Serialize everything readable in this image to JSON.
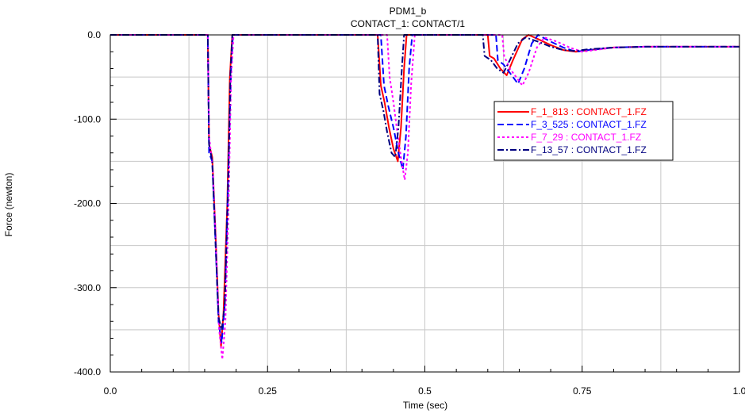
{
  "chart_data": {
    "type": "line",
    "title": "PDM1_b",
    "subtitle": "CONTACT_1: CONTACT/1",
    "xlabel": "Time (sec)",
    "ylabel": "Force (newton)",
    "xlim": [
      0.0,
      1.0
    ],
    "ylim": [
      -400.0,
      0.0
    ],
    "x_ticks": [
      0.0,
      0.25,
      0.5,
      0.75,
      1.0
    ],
    "x_tick_labels": [
      "0.0",
      "0.25",
      "0.5",
      "0.75",
      "1.0"
    ],
    "y_ticks": [
      0.0,
      -100.0,
      -200.0,
      -300.0,
      -400.0
    ],
    "y_tick_labels": [
      "0.0",
      "-100.0",
      "-200.0",
      "-300.0",
      "-400.0"
    ],
    "grid": true,
    "legend_position": "upper-right",
    "series": [
      {
        "name": "F_1_813 : CONTACT_1.FZ",
        "color": "#ff0000",
        "dash": "solid",
        "points": [
          [
            0.0,
            0
          ],
          [
            0.155,
            0
          ],
          [
            0.157,
            -130
          ],
          [
            0.162,
            -145
          ],
          [
            0.167,
            -230
          ],
          [
            0.172,
            -330
          ],
          [
            0.176,
            -370
          ],
          [
            0.18,
            -330
          ],
          [
            0.186,
            -200
          ],
          [
            0.19,
            -50
          ],
          [
            0.194,
            0
          ],
          [
            0.425,
            0
          ],
          [
            0.43,
            -60
          ],
          [
            0.436,
            -80
          ],
          [
            0.443,
            -110
          ],
          [
            0.45,
            -135
          ],
          [
            0.457,
            -150
          ],
          [
            0.462,
            -110
          ],
          [
            0.467,
            -40
          ],
          [
            0.471,
            0
          ],
          [
            0.6,
            0
          ],
          [
            0.603,
            -25
          ],
          [
            0.61,
            -28
          ],
          [
            0.62,
            -40
          ],
          [
            0.63,
            -48
          ],
          [
            0.64,
            -30
          ],
          [
            0.655,
            -5
          ],
          [
            0.665,
            0
          ],
          [
            0.68,
            -5
          ],
          [
            0.7,
            -12
          ],
          [
            0.72,
            -18
          ],
          [
            0.74,
            -20
          ],
          [
            0.76,
            -18
          ],
          [
            0.8,
            -15
          ],
          [
            0.85,
            -14
          ],
          [
            1.0,
            -14
          ]
        ]
      },
      {
        "name": "F_3_525 : CONTACT_1.FZ",
        "color": "#0000ff",
        "dash": "dashed",
        "points": [
          [
            0.0,
            0
          ],
          [
            0.155,
            0
          ],
          [
            0.157,
            -140
          ],
          [
            0.162,
            -150
          ],
          [
            0.167,
            -240
          ],
          [
            0.172,
            -340
          ],
          [
            0.177,
            -365
          ],
          [
            0.182,
            -320
          ],
          [
            0.187,
            -180
          ],
          [
            0.192,
            -40
          ],
          [
            0.195,
            0
          ],
          [
            0.43,
            0
          ],
          [
            0.435,
            -60
          ],
          [
            0.442,
            -85
          ],
          [
            0.45,
            -110
          ],
          [
            0.458,
            -140
          ],
          [
            0.465,
            -160
          ],
          [
            0.47,
            -120
          ],
          [
            0.475,
            -40
          ],
          [
            0.48,
            0
          ],
          [
            0.613,
            0
          ],
          [
            0.616,
            -30
          ],
          [
            0.625,
            -35
          ],
          [
            0.635,
            -45
          ],
          [
            0.648,
            -58
          ],
          [
            0.658,
            -40
          ],
          [
            0.67,
            -10
          ],
          [
            0.68,
            0
          ],
          [
            0.7,
            -8
          ],
          [
            0.72,
            -15
          ],
          [
            0.74,
            -20
          ],
          [
            0.76,
            -18
          ],
          [
            0.8,
            -15
          ],
          [
            0.85,
            -14
          ],
          [
            1.0,
            -14
          ]
        ]
      },
      {
        "name": "F_7_29 : CONTACT_1.FZ",
        "color": "#ff00ff",
        "dash": "dotted",
        "points": [
          [
            0.0,
            0
          ],
          [
            0.155,
            0
          ],
          [
            0.157,
            -120
          ],
          [
            0.163,
            -160
          ],
          [
            0.168,
            -250
          ],
          [
            0.173,
            -350
          ],
          [
            0.178,
            -385
          ],
          [
            0.183,
            -340
          ],
          [
            0.188,
            -200
          ],
          [
            0.192,
            -50
          ],
          [
            0.196,
            0
          ],
          [
            0.44,
            0
          ],
          [
            0.444,
            -50
          ],
          [
            0.45,
            -80
          ],
          [
            0.457,
            -120
          ],
          [
            0.463,
            -150
          ],
          [
            0.468,
            -172
          ],
          [
            0.473,
            -140
          ],
          [
            0.478,
            -60
          ],
          [
            0.484,
            0
          ],
          [
            0.623,
            0
          ],
          [
            0.626,
            -25
          ],
          [
            0.635,
            -40
          ],
          [
            0.645,
            -50
          ],
          [
            0.655,
            -60
          ],
          [
            0.665,
            -45
          ],
          [
            0.678,
            -15
          ],
          [
            0.69,
            -3
          ],
          [
            0.71,
            -8
          ],
          [
            0.73,
            -15
          ],
          [
            0.75,
            -20
          ],
          [
            0.77,
            -18
          ],
          [
            0.8,
            -15
          ],
          [
            0.85,
            -14
          ],
          [
            1.0,
            -14
          ]
        ]
      },
      {
        "name": "F_13_57 : CONTACT_1.FZ",
        "color": "#000080",
        "dash": "dashdot",
        "points": [
          [
            0.0,
            0
          ],
          [
            0.155,
            0
          ],
          [
            0.157,
            -130
          ],
          [
            0.162,
            -150
          ],
          [
            0.167,
            -240
          ],
          [
            0.172,
            -335
          ],
          [
            0.177,
            -350
          ],
          [
            0.182,
            -320
          ],
          [
            0.187,
            -190
          ],
          [
            0.191,
            -45
          ],
          [
            0.194,
            0
          ],
          [
            0.425,
            0
          ],
          [
            0.428,
            -70
          ],
          [
            0.434,
            -90
          ],
          [
            0.44,
            -115
          ],
          [
            0.447,
            -140
          ],
          [
            0.453,
            -145
          ],
          [
            0.458,
            -110
          ],
          [
            0.463,
            -45
          ],
          [
            0.467,
            0
          ],
          [
            0.592,
            0
          ],
          [
            0.595,
            -25
          ],
          [
            0.605,
            -30
          ],
          [
            0.615,
            -40
          ],
          [
            0.625,
            -45
          ],
          [
            0.635,
            -30
          ],
          [
            0.648,
            -10
          ],
          [
            0.66,
            -3
          ],
          [
            0.68,
            -8
          ],
          [
            0.7,
            -14
          ],
          [
            0.72,
            -18
          ],
          [
            0.74,
            -19
          ],
          [
            0.76,
            -17
          ],
          [
            0.8,
            -15
          ],
          [
            0.85,
            -14
          ],
          [
            1.0,
            -14
          ]
        ]
      }
    ]
  }
}
